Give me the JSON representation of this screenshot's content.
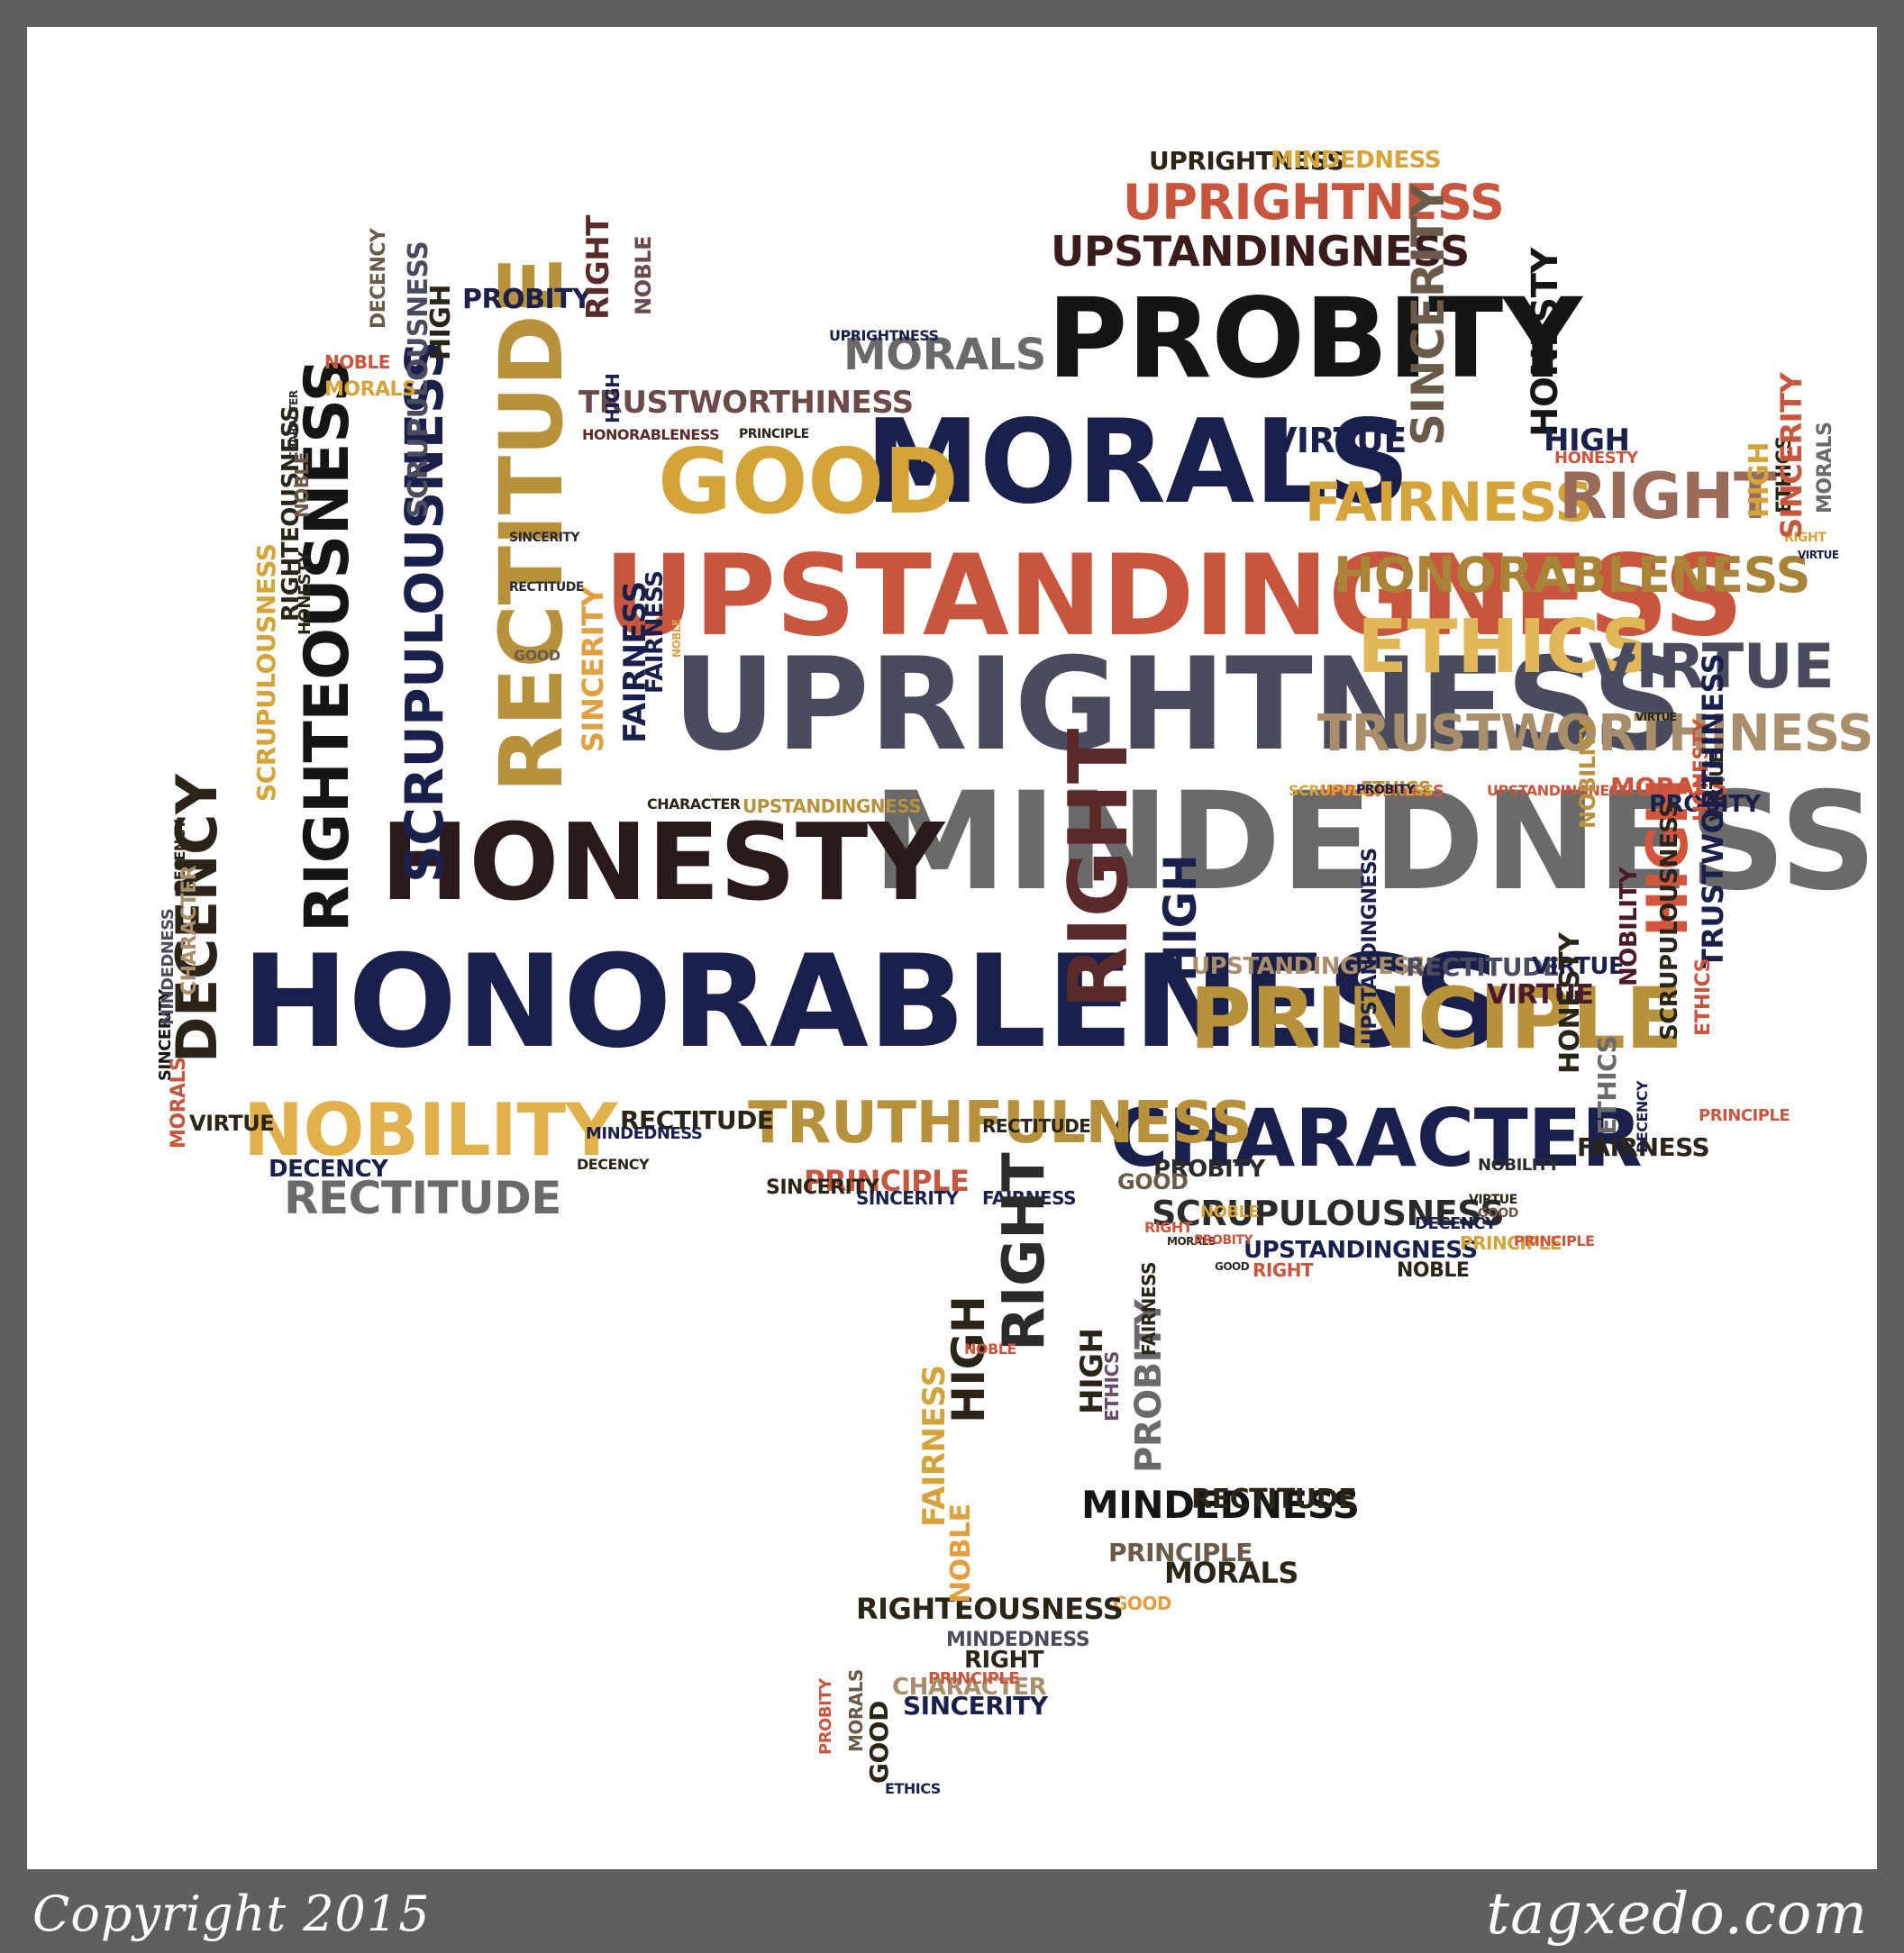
{
  "footer": {
    "copyright": "Copyright 2015",
    "site": "tagxedo.com"
  },
  "colors": {
    "frame": "#5f5f5f",
    "canvas": "#ffffff",
    "footer_text": "#ffffff"
  },
  "words": [
    {
      "text": "HONORABLENESS",
      "color": "#1b1f4b"
    },
    {
      "text": "MINDEDNESS",
      "color": "#6a6a6a"
    },
    {
      "text": "HONESTY",
      "color": "#2b1a1a"
    },
    {
      "text": "UPRIGHTNESS",
      "color": "#4a4c5e"
    },
    {
      "text": "UPSTANDINGNESS",
      "color": "#c8553d"
    },
    {
      "text": "MORALS",
      "color": "#1b1f4b"
    },
    {
      "text": "PROBITY",
      "color": "#151515"
    },
    {
      "text": "RECTITUDE",
      "color": "#b8913c"
    },
    {
      "text": "GOOD",
      "color": "#d4a43a"
    },
    {
      "text": "PRINCIPLE",
      "color": "#b8913c"
    },
    {
      "text": "CHARACTER",
      "color": "#1b1f4b"
    },
    {
      "text": "NOBILITY",
      "color": "#e0b04a"
    },
    {
      "text": "TRUTHFULNESS",
      "color": "#b8913c"
    },
    {
      "text": "ETHICS",
      "color": "#e0b85a"
    },
    {
      "text": "VIRTUE",
      "color": "#4a4c5e"
    },
    {
      "text": "TRUSTWORTHINESS",
      "color": "#a88e6a"
    },
    {
      "text": "HONORABLENESS",
      "color": "#a88338"
    },
    {
      "text": "FAIRNESS",
      "color": "#d4a43a"
    },
    {
      "text": "RIGHT",
      "color": "#9a6a5a"
    },
    {
      "text": "UPRIGHTNESS",
      "color": "#c8553d"
    },
    {
      "text": "UPSTANDINGNESS",
      "color": "#3b1c1c"
    },
    {
      "text": "RIGHTEOUSNESS",
      "color": "#151515"
    },
    {
      "text": "SCRUPULOUSNESS",
      "color": "#1b1f4b"
    },
    {
      "text": "DECENCY",
      "color": "#2b2418"
    },
    {
      "text": "SINCERITY",
      "color": "#6a5a4a"
    },
    {
      "text": "HONESTY",
      "color": "#151515"
    },
    {
      "text": "HIGH",
      "color": "#d4553d"
    },
    {
      "text": "RECTITUDE",
      "color": "#6a6a6a"
    },
    {
      "text": "SCRUPULOUSNESS",
      "color": "#2b2b2b"
    },
    {
      "text": "MORALS",
      "color": "#6a6a6a"
    },
    {
      "text": "TRUSTWORTHINESS",
      "color": "#6a4a4a"
    },
    {
      "text": "UPSTANDINGNESS",
      "color": "#a88e6a"
    },
    {
      "text": "RECTITUDE",
      "color": "#4a4c5e"
    },
    {
      "text": "VIRTUE",
      "color": "#1b1f4b"
    },
    {
      "text": "UPSTANDINGNESS",
      "color": "#1b1f4b"
    },
    {
      "text": "PRINCIPLE",
      "color": "#c8553d"
    },
    {
      "text": "HIGH",
      "color": "#1b1f4b"
    },
    {
      "text": "VIRTUE",
      "color": "#1b1f4b"
    },
    {
      "text": "MORALS",
      "color": "#c8553d"
    },
    {
      "text": "SINCERITY",
      "color": "#e0a040"
    },
    {
      "text": "FAIRNESS",
      "color": "#1b1f4b"
    },
    {
      "text": "UPRIGHTNESS",
      "color": "#2b2418"
    },
    {
      "text": "MINDEDNESS",
      "color": "#d4a43a"
    },
    {
      "text": "PROBITY",
      "color": "#1b1f4b"
    },
    {
      "text": "RIGHT",
      "color": "#5a2a2a"
    },
    {
      "text": "NOBLE",
      "color": "#6a4a4a"
    },
    {
      "text": "HIGH",
      "color": "#2b2418"
    },
    {
      "text": "SCRUPULOUSNESS",
      "color": "#4a4c5e"
    },
    {
      "text": "RIGHTEOUSNESS",
      "color": "#2b2418"
    },
    {
      "text": "DECENCY",
      "color": "#6a5a4a"
    },
    {
      "text": "NOBLE",
      "color": "#c8553d"
    },
    {
      "text": "MORALS",
      "color": "#d4a43a"
    },
    {
      "text": "HONORABLENESS",
      "color": "#5a2a2a"
    },
    {
      "text": "PRINCIPLE",
      "color": "#2b2418"
    },
    {
      "text": "UPRIGHTNESS",
      "color": "#1b1f4b"
    },
    {
      "text": "CHARACTER",
      "color": "#2b2b2b"
    },
    {
      "text": "HONESTY",
      "color": "#c8553d"
    },
    {
      "text": "HIGH",
      "color": "#1b1f4b"
    },
    {
      "text": "NOBLE",
      "color": "#6a5a4a"
    },
    {
      "text": "HONESTY",
      "color": "#2b2418"
    },
    {
      "text": "SINCERITY",
      "color": "#2b2b2b"
    },
    {
      "text": "RECTITUDE",
      "color": "#2b2b2b"
    },
    {
      "text": "GOOD",
      "color": "#6a5a4a"
    },
    {
      "text": "NOBLE",
      "color": "#e0a040"
    },
    {
      "text": "FAIRNESS",
      "color": "#1b1f4b"
    },
    {
      "text": "CHARACTER",
      "color": "#2b2418"
    },
    {
      "text": "UPSTANDINGNESS",
      "color": "#b8913c"
    },
    {
      "text": "ETHICS",
      "color": "#b8913c"
    },
    {
      "text": "UPRIGHTNESS",
      "color": "#c8553d"
    },
    {
      "text": "SCRUPULOUSNESS",
      "color": "#d4a43a"
    },
    {
      "text": "PROBITY",
      "color": "#1b1f4b"
    },
    {
      "text": "UPSTANDINGNESS",
      "color": "#c8553d"
    },
    {
      "text": "DECENCY",
      "color": "#2b2418"
    },
    {
      "text": "PROBITY",
      "color": "#1b1f4b"
    },
    {
      "text": "HONESTY",
      "color": "#c8553d"
    },
    {
      "text": "VIRTUE",
      "color": "#2b2418"
    },
    {
      "text": "ETHICS",
      "color": "#2b2418"
    },
    {
      "text": "RIGHT",
      "color": "#d4a43a"
    },
    {
      "text": "HIGH",
      "color": "#d4a43a"
    },
    {
      "text": "SINCERITY",
      "color": "#c8553d"
    },
    {
      "text": "MORALS",
      "color": "#6a6a6a"
    },
    {
      "text": "VIRTUE",
      "color": "#2b2418"
    },
    {
      "text": "VIRTUE",
      "color": "#1b1f4b"
    },
    {
      "text": "SCRUPULOUSNESS",
      "color": "#d4a43a"
    },
    {
      "text": "NOBILITY",
      "color": "#b8913c"
    },
    {
      "text": "SINCERITY",
      "color": "#151515"
    },
    {
      "text": "TRUSTWORTHINESS",
      "color": "#1b1f4b"
    },
    {
      "text": "NOBILITY",
      "color": "#4a1a2a"
    },
    {
      "text": "VIRTUE",
      "color": "#4a1a2a"
    },
    {
      "text": "ETHICS",
      "color": "#c8553d"
    },
    {
      "text": "SCRUPULOUSNESS",
      "color": "#2b2418"
    },
    {
      "text": "UPSTANDINGNESS",
      "color": "#1b1f4b"
    },
    {
      "text": "PROBITY",
      "color": "#2b2b2b"
    },
    {
      "text": "FAIRNESS",
      "color": "#2b2418"
    },
    {
      "text": "NOBILITY",
      "color": "#2b2b2b"
    },
    {
      "text": "DECENCY",
      "color": "#1b1f4b"
    },
    {
      "text": "PRINCIPLE",
      "color": "#d4a43a"
    },
    {
      "text": "HONESTY",
      "color": "#2b2418"
    },
    {
      "text": "ETHICS",
      "color": "#6a6a6a"
    },
    {
      "text": "PRINCIPLE",
      "color": "#c8553d"
    },
    {
      "text": "RIGHT",
      "color": "#c8553d"
    },
    {
      "text": "DECENCY",
      "color": "#1b1f4b"
    },
    {
      "text": "VIRTUE",
      "color": "#2b2418"
    },
    {
      "text": "GOOD",
      "color": "#6a5a4a"
    },
    {
      "text": "RIGHT",
      "color": "#c8553d"
    },
    {
      "text": "NOBLE",
      "color": "#2b2418"
    },
    {
      "text": "MORALS",
      "color": "#c8553d"
    },
    {
      "text": "DECENCY",
      "color": "#1b1f4b"
    },
    {
      "text": "VIRTUE",
      "color": "#2b2418"
    },
    {
      "text": "RECTITUDE",
      "color": "#2b2418"
    },
    {
      "text": "MINDEDNESS",
      "color": "#1b1f4b"
    },
    {
      "text": "DECENCY",
      "color": "#2b2418"
    },
    {
      "text": "RECTITUDE",
      "color": "#2b2418"
    },
    {
      "text": "SINCERITY",
      "color": "#2b2418"
    },
    {
      "text": "GOOD",
      "color": "#6a5a4a"
    },
    {
      "text": "NOBLE",
      "color": "#d4a43a"
    },
    {
      "text": "MINDEDNESS",
      "color": "#4a4c5e"
    },
    {
      "text": "CHARACTER",
      "color": "#a88e6a"
    },
    {
      "text": "RIGHT",
      "color": "#5a2a2a"
    },
    {
      "text": "FAIRNESS",
      "color": "#1b1f4b"
    },
    {
      "text": "PRINCIPLE",
      "color": "#c8553d"
    },
    {
      "text": "MORALS",
      "color": "#2b2418"
    },
    {
      "text": "PROBITY",
      "color": "#c8553d"
    },
    {
      "text": "GOOD",
      "color": "#2b2b2b"
    },
    {
      "text": "SINCERITY",
      "color": "#1b1f4b"
    },
    {
      "text": "HIGH",
      "color": "#1b1f4b"
    },
    {
      "text": "RIGHT",
      "color": "#2b2b2b"
    },
    {
      "text": "PRINCIPLE",
      "color": "#6a5a4a"
    },
    {
      "text": "PROBITY",
      "color": "#6a6a6a"
    },
    {
      "text": "MINDEDNESS",
      "color": "#151515"
    },
    {
      "text": "RECTITUDE",
      "color": "#2b2418"
    },
    {
      "text": "MORALS",
      "color": "#2b2418"
    },
    {
      "text": "GOOD",
      "color": "#e0a040"
    },
    {
      "text": "HIGH",
      "color": "#2b2418"
    },
    {
      "text": "FAIRNESS",
      "color": "#d4a43a"
    },
    {
      "text": "RIGHTEOUSNESS",
      "color": "#2b2418"
    },
    {
      "text": "MINDEDNESS",
      "color": "#4a4c5e"
    },
    {
      "text": "CHARACTER",
      "color": "#a88e6a"
    },
    {
      "text": "RIGHT",
      "color": "#2b2418"
    },
    {
      "text": "PRINCIPLE",
      "color": "#c8553d"
    },
    {
      "text": "HIGH",
      "color": "#2b2418"
    },
    {
      "text": "ETHICS",
      "color": "#6a4a6a"
    },
    {
      "text": "FAIRNESS",
      "color": "#2b2418"
    },
    {
      "text": "NOBLE",
      "color": "#c8553d"
    },
    {
      "text": "NOBLE",
      "color": "#e0a040"
    },
    {
      "text": "SINCERITY",
      "color": "#1b1f4b"
    },
    {
      "text": "GOOD",
      "color": "#2b2418"
    },
    {
      "text": "ETHICS",
      "color": "#1b1f4b"
    },
    {
      "text": "PROBITY",
      "color": "#c8553d"
    },
    {
      "text": "MORALS",
      "color": "#6a5a4a"
    },
    {
      "text": "DECENCY",
      "color": "#c8553d"
    }
  ]
}
